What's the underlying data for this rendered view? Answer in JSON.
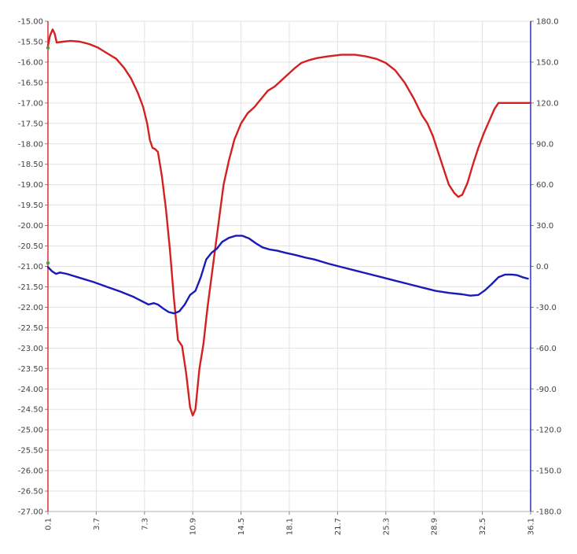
{
  "chart_data": {
    "type": "line",
    "title": "",
    "xlabel": "",
    "ylabel": "",
    "ylabel_right": "",
    "xlim": [
      0.1,
      36.1
    ],
    "ylim": [
      -27.0,
      -15.0
    ],
    "ylim_right": [
      -180.0,
      180.0
    ],
    "grid": true,
    "x_ticks": [
      "0.1",
      "3.7",
      "7.3",
      "10.9",
      "14.5",
      "18.1",
      "21.7",
      "25.3",
      "28.9",
      "32.5",
      "36.1"
    ],
    "y_ticks_left": [
      "-15.00",
      "-15.50",
      "-16.00",
      "-16.50",
      "-17.00",
      "-17.50",
      "-18.00",
      "-18.50",
      "-19.00",
      "-19.50",
      "-20.00",
      "-20.50",
      "-21.00",
      "-21.50",
      "-22.00",
      "-22.50",
      "-23.00",
      "-23.50",
      "-24.00",
      "-24.50",
      "-25.00",
      "-25.50",
      "-26.00",
      "-26.50",
      "-27.00"
    ],
    "y_ticks_right": [
      "180.0",
      "150.0",
      "120.0",
      "90.0",
      "60.0",
      "30.0",
      "0.0",
      "-30.0",
      "-60.0",
      "-90.0",
      "-120.0",
      "-150.0",
      "-180.0"
    ],
    "colors": {
      "left_axis": "#e03030",
      "right_axis": "#3030c0",
      "grid": "#e3e3e3"
    },
    "series": [
      {
        "axis": "left",
        "color": "#d42020",
        "points": [
          [
            0.1,
            -15.6
          ],
          [
            0.25,
            -15.35
          ],
          [
            0.45,
            -15.2
          ],
          [
            0.6,
            -15.3
          ],
          [
            0.75,
            -15.52
          ],
          [
            1.2,
            -15.5
          ],
          [
            1.8,
            -15.48
          ],
          [
            2.5,
            -15.5
          ],
          [
            3.2,
            -15.56
          ],
          [
            3.8,
            -15.64
          ],
          [
            4.5,
            -15.78
          ],
          [
            5.2,
            -15.92
          ],
          [
            5.8,
            -16.15
          ],
          [
            6.3,
            -16.4
          ],
          [
            6.8,
            -16.75
          ],
          [
            7.2,
            -17.1
          ],
          [
            7.5,
            -17.5
          ],
          [
            7.7,
            -17.9
          ],
          [
            7.9,
            -18.1
          ],
          [
            8.1,
            -18.13
          ],
          [
            8.3,
            -18.2
          ],
          [
            8.6,
            -18.8
          ],
          [
            8.9,
            -19.6
          ],
          [
            9.2,
            -20.6
          ],
          [
            9.5,
            -21.8
          ],
          [
            9.8,
            -22.8
          ],
          [
            10.1,
            -22.95
          ],
          [
            10.4,
            -23.6
          ],
          [
            10.7,
            -24.45
          ],
          [
            10.9,
            -24.65
          ],
          [
            11.1,
            -24.5
          ],
          [
            11.4,
            -23.5
          ],
          [
            11.7,
            -22.9
          ],
          [
            12.0,
            -22.0
          ],
          [
            12.4,
            -21.0
          ],
          [
            12.8,
            -20.0
          ],
          [
            13.2,
            -19.0
          ],
          [
            13.6,
            -18.4
          ],
          [
            14.0,
            -17.9
          ],
          [
            14.5,
            -17.5
          ],
          [
            15.0,
            -17.25
          ],
          [
            15.5,
            -17.1
          ],
          [
            16.0,
            -16.9
          ],
          [
            16.5,
            -16.7
          ],
          [
            17.0,
            -16.6
          ],
          [
            17.5,
            -16.45
          ],
          [
            18.0,
            -16.3
          ],
          [
            18.5,
            -16.15
          ],
          [
            19.0,
            -16.02
          ],
          [
            19.6,
            -15.95
          ],
          [
            20.2,
            -15.9
          ],
          [
            21.0,
            -15.86
          ],
          [
            22.0,
            -15.82
          ],
          [
            23.0,
            -15.82
          ],
          [
            23.8,
            -15.86
          ],
          [
            24.6,
            -15.92
          ],
          [
            25.3,
            -16.02
          ],
          [
            26.0,
            -16.2
          ],
          [
            26.7,
            -16.5
          ],
          [
            27.4,
            -16.9
          ],
          [
            28.0,
            -17.3
          ],
          [
            28.4,
            -17.5
          ],
          [
            28.8,
            -17.8
          ],
          [
            29.2,
            -18.2
          ],
          [
            29.6,
            -18.6
          ],
          [
            30.0,
            -19.0
          ],
          [
            30.4,
            -19.2
          ],
          [
            30.7,
            -19.3
          ],
          [
            31.0,
            -19.25
          ],
          [
            31.4,
            -18.95
          ],
          [
            31.8,
            -18.5
          ],
          [
            32.2,
            -18.1
          ],
          [
            32.6,
            -17.75
          ],
          [
            33.0,
            -17.45
          ],
          [
            33.4,
            -17.15
          ],
          [
            33.7,
            -17.0
          ],
          [
            36.1,
            -17.0
          ]
        ]
      },
      {
        "axis": "right",
        "color": "#1a1ab8",
        "points": [
          [
            0.1,
            -0.5
          ],
          [
            0.4,
            -3.5
          ],
          [
            0.7,
            -5.5
          ],
          [
            1.0,
            -4.5
          ],
          [
            1.5,
            -5.5
          ],
          [
            2.5,
            -8.5
          ],
          [
            3.5,
            -11.5
          ],
          [
            4.5,
            -15.0
          ],
          [
            5.5,
            -18.5
          ],
          [
            6.5,
            -22.5
          ],
          [
            7.0,
            -25.0
          ],
          [
            7.6,
            -28.0
          ],
          [
            8.0,
            -27.0
          ],
          [
            8.3,
            -28.0
          ],
          [
            8.7,
            -31.0
          ],
          [
            9.1,
            -33.5
          ],
          [
            9.5,
            -34.5
          ],
          [
            9.9,
            -33.0
          ],
          [
            10.3,
            -28.0
          ],
          [
            10.7,
            -21.0
          ],
          [
            11.1,
            -18.0
          ],
          [
            11.5,
            -8.0
          ],
          [
            11.9,
            5.0
          ],
          [
            12.3,
            10.0
          ],
          [
            12.7,
            13.0
          ],
          [
            13.1,
            18.0
          ],
          [
            13.6,
            21.0
          ],
          [
            14.1,
            22.5
          ],
          [
            14.6,
            22.5
          ],
          [
            15.1,
            20.5
          ],
          [
            15.6,
            17.0
          ],
          [
            16.1,
            14.0
          ],
          [
            16.6,
            12.5
          ],
          [
            17.2,
            11.5
          ],
          [
            17.8,
            10.0
          ],
          [
            18.5,
            8.5
          ],
          [
            19.3,
            6.5
          ],
          [
            20.0,
            5.0
          ],
          [
            21.0,
            2.0
          ],
          [
            22.0,
            -0.5
          ],
          [
            23.0,
            -3.0
          ],
          [
            24.0,
            -5.5
          ],
          [
            25.0,
            -8.0
          ],
          [
            26.0,
            -10.5
          ],
          [
            27.0,
            -13.0
          ],
          [
            28.0,
            -15.5
          ],
          [
            29.0,
            -18.0
          ],
          [
            30.0,
            -19.5
          ],
          [
            31.0,
            -20.5
          ],
          [
            31.6,
            -21.5
          ],
          [
            32.2,
            -21.0
          ],
          [
            32.7,
            -17.5
          ],
          [
            33.2,
            -13.0
          ],
          [
            33.7,
            -8.0
          ],
          [
            34.2,
            -6.0
          ],
          [
            34.7,
            -6.0
          ],
          [
            35.1,
            -6.5
          ],
          [
            35.5,
            -8.0
          ],
          [
            35.9,
            -9.0
          ]
        ]
      }
    ]
  }
}
